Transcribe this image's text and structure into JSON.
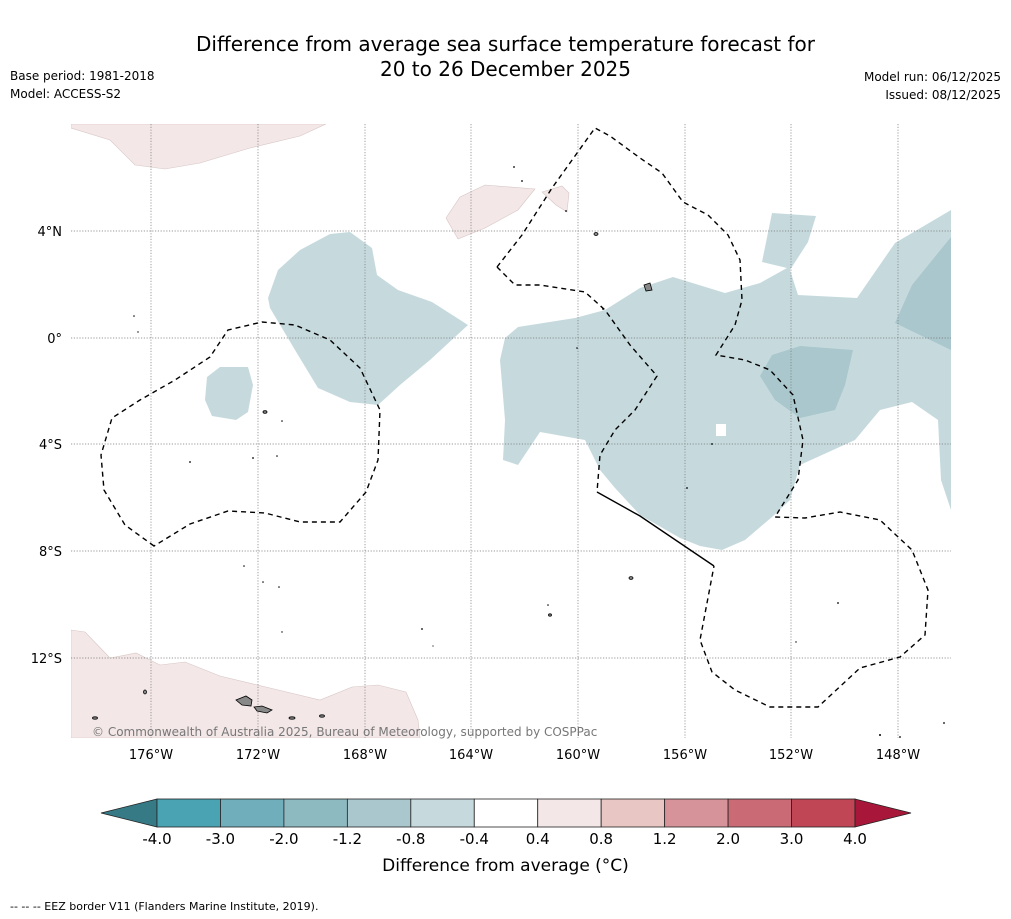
{
  "header": {
    "title_line1": "Difference from average sea surface temperature forecast for",
    "title_line2": "20 to 26 December 2025",
    "base_period": "Base period: 1981-2018",
    "model": "Model: ACCESS-S2",
    "model_run": "Model run: 06/12/2025",
    "issued": "Issued: 08/12/2025"
  },
  "map": {
    "lon_labels": [
      "176°W",
      "172°W",
      "168°W",
      "164°W",
      "160°W",
      "156°W",
      "152°W",
      "148°W"
    ],
    "lat_labels": [
      "4°N",
      "0°",
      "4°S",
      "8°S",
      "12°S"
    ],
    "copyright": "© Commonwealth of Australia 2025, Bureau of Meteorology, supported by COSPPac",
    "colors": {
      "warm_light": "#f3e7e7",
      "cool_light": "#c6dade",
      "cool_mid": "#a9c7cc",
      "land": "#888888"
    }
  },
  "colorbar": {
    "ticks": [
      "-4.0",
      "-3.0",
      "-2.0",
      "-1.2",
      "-0.8",
      "-0.4",
      "0.4",
      "0.8",
      "1.2",
      "2.0",
      "3.0",
      "4.0"
    ],
    "colors": [
      "#4aa3b3",
      "#6faeba",
      "#8dbac1",
      "#a9c7cc",
      "#c6dade",
      "#ffffff",
      "#f3e7e7",
      "#e8c6c3",
      "#d6949a",
      "#c96a75",
      "#c04656"
    ],
    "under_color": "#367a86",
    "over_color": "#a8173a",
    "title": "Difference from average (°C)"
  },
  "footnote": "-- -- -- EEZ border V11 (Flanders Marine Institute, 2019)."
}
